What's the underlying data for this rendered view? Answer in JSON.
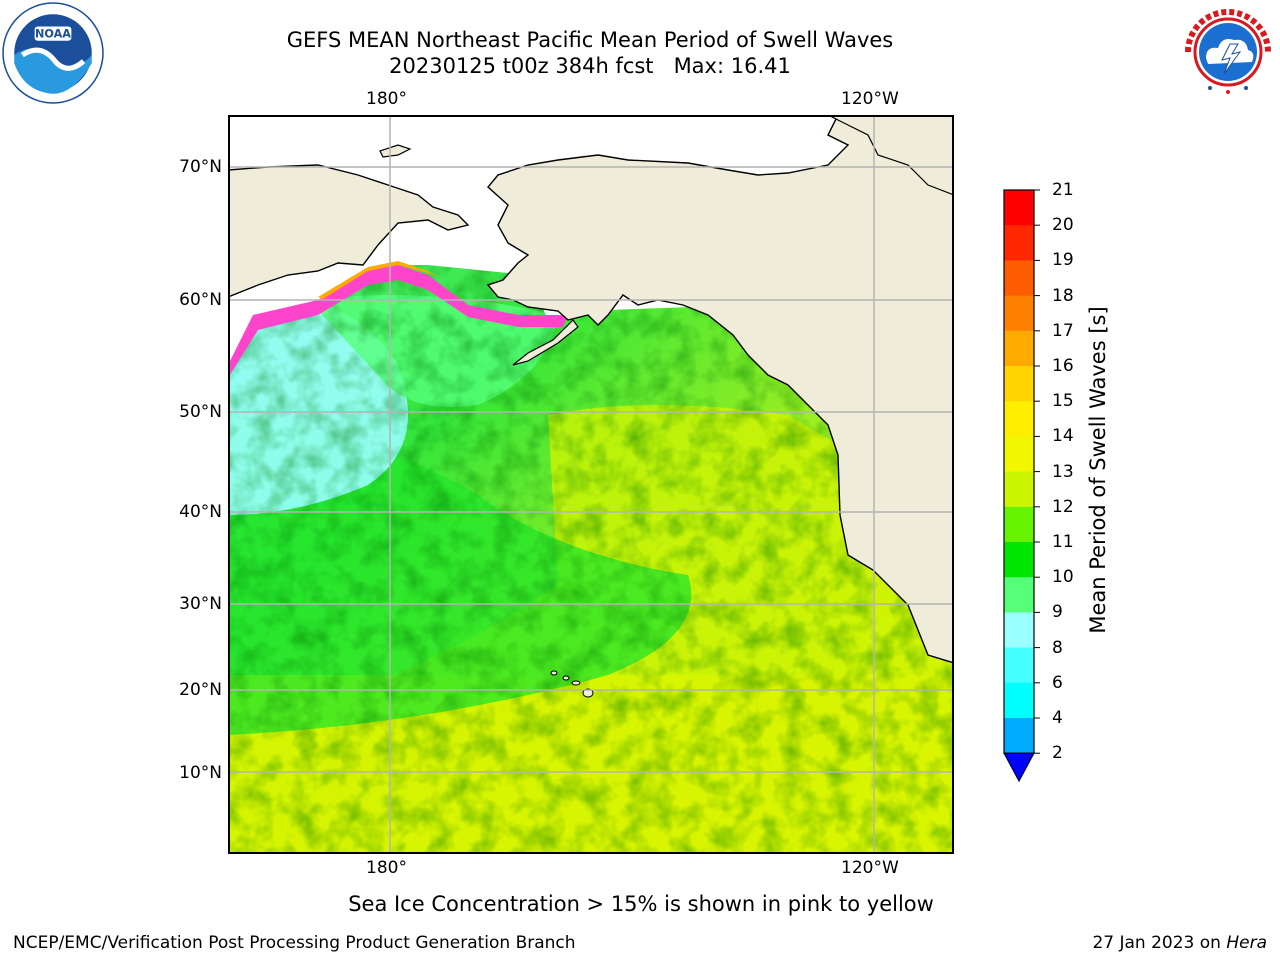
{
  "title": {
    "line1": "GEFS MEAN Northeast Pacific Mean Period of Swell Waves",
    "line2": "20230125 t00z 384h fcst   Max: 16.41"
  },
  "map": {
    "lat_labels": [
      "70°N",
      "60°N",
      "50°N",
      "40°N",
      "30°N",
      "20°N",
      "10°N"
    ],
    "lon_labels": [
      "180°",
      "120°W"
    ],
    "land_color": "#efedd9",
    "ice_free_color": "#ffffff",
    "coast_color": "#000000",
    "grid_color": "#b4b4b4"
  },
  "colorbar": {
    "title": "Mean Period of Swell Waves [s]",
    "levels": [
      "21",
      "20",
      "19",
      "18",
      "17",
      "16",
      "15",
      "14",
      "13",
      "12",
      "11",
      "10",
      "9",
      "8",
      "6",
      "4",
      "2"
    ],
    "colors": [
      "#ff0000",
      "#ff2600",
      "#ff5c00",
      "#ff8000",
      "#ffaa00",
      "#ffd400",
      "#ffee00",
      "#f2f700",
      "#ccf500",
      "#66f200",
      "#00e600",
      "#55ff7a",
      "#99ffff",
      "#44ffff",
      "#00ffff",
      "#00aaff",
      "#0055ff"
    ],
    "under_color": "#0000ff"
  },
  "notes": {
    "ice": "Sea Ice Concentration > 15% is shown in pink to yellow"
  },
  "footer": {
    "left": "NCEP/EMC/Verification Post Processing Product Generation Branch",
    "date": "27 Jan 2023 on ",
    "machine": "Hera"
  },
  "logos": {
    "noaa_icon": "noaa-logo",
    "nws_icon": "nws-logo"
  }
}
